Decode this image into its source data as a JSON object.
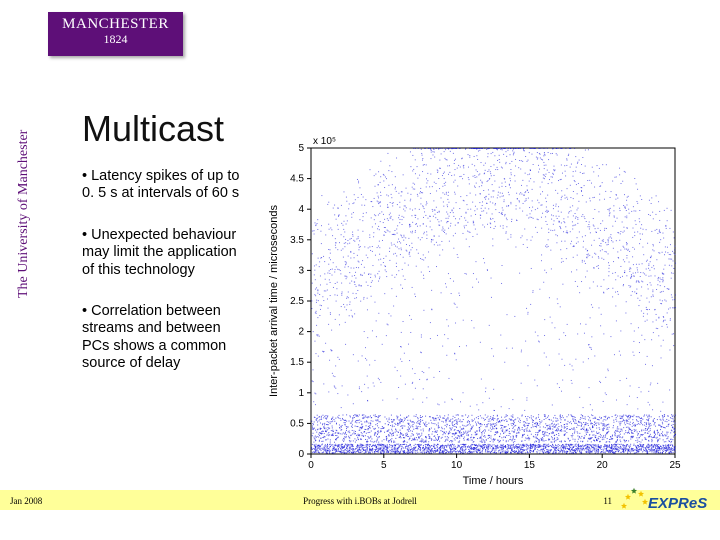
{
  "brand": {
    "name": "MANCHESTER",
    "year": "1824",
    "vertical": "The University of Manchester",
    "box_bg": "#5e0f78",
    "text_color": "#ffffff"
  },
  "title": "Multicast",
  "bullets": [
    "• Latency spikes of up to 0. 5 s at intervals of 60 s",
    "• Unexpected behaviour may limit the application of this technology",
    "• Correlation between streams and between PCs shows a common source of delay"
  ],
  "chart": {
    "type": "scatter",
    "xlabel": "Time / hours",
    "ylabel": "Inter-packet arrival time / microseconds",
    "annotation": "x 10⁵",
    "xlim": [
      0,
      25
    ],
    "ylim": [
      0,
      5
    ],
    "xticks": [
      0,
      5,
      10,
      15,
      20,
      25
    ],
    "yticks": [
      0,
      0.5,
      1,
      1.5,
      2,
      2.5,
      3,
      3.5,
      4,
      4.5,
      5
    ],
    "axis_fontsize": 10,
    "label_fontsize": 11,
    "point_color": "#1818d8",
    "dense_band_y": [
      0,
      0.6
    ],
    "axis_color": "#000000",
    "background_color": "#ffffff",
    "n_scatter_points": 2200,
    "n_dense_points": 4000
  },
  "footer": {
    "date": "Jan 2008",
    "center": "Progress with i.BOBs at Jodrell",
    "page": "11",
    "bar_color": "#ffff99"
  },
  "expres": {
    "text": "EXPReS",
    "text_color": "#1a4fa0",
    "star_colors": [
      "#f2c200",
      "#f2c200",
      "#3a7f2a",
      "#f2c200",
      "#f2c200"
    ]
  }
}
